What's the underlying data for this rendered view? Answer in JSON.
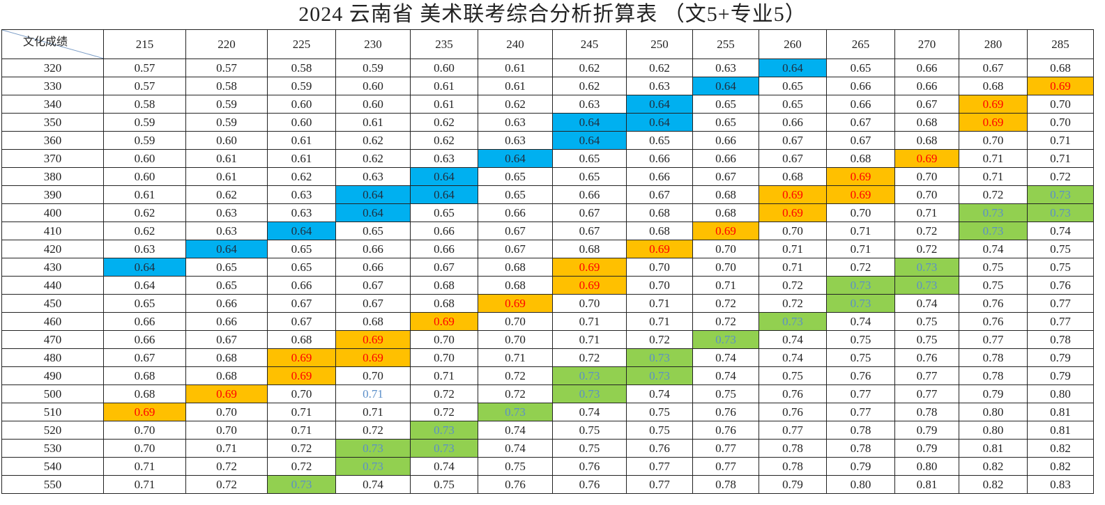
{
  "header": {
    "title": "2024 云南省 美术联考综合分析折算表 （文5+专业5）"
  },
  "table": {
    "corner": "文化成绩",
    "columns": [
      "215",
      "220",
      "225",
      "230",
      "235",
      "240",
      "245",
      "250",
      "255",
      "260",
      "265",
      "270",
      "280",
      "285"
    ],
    "styles": {
      "blue": {
        "bg": "#00b0f0",
        "fg": "#1f2d3d"
      },
      "orange": {
        "bg": "#ffc000",
        "fg": "#ff0000"
      },
      "green": {
        "bg": "#92d050",
        "fg": "#5b8fc9"
      },
      "bluetext": {
        "bg": "#ffffff",
        "fg": "#5b8fc9"
      }
    },
    "rows": [
      {
        "label": "320",
        "cells": [
          "0.57",
          "0.57",
          "0.58",
          "0.59",
          "0.60",
          "0.61",
          "0.62",
          "0.62",
          "0.63",
          "0.64",
          "0.65",
          "0.66",
          "0.67",
          "0.68"
        ],
        "fill": {
          "9": "blue"
        }
      },
      {
        "label": "330",
        "cells": [
          "0.57",
          "0.58",
          "0.59",
          "0.60",
          "0.61",
          "0.61",
          "0.62",
          "0.63",
          "0.64",
          "0.65",
          "0.66",
          "0.66",
          "0.68",
          "0.69"
        ],
        "fill": {
          "8": "blue",
          "13": "orange"
        }
      },
      {
        "label": "340",
        "cells": [
          "0.58",
          "0.59",
          "0.60",
          "0.60",
          "0.61",
          "0.62",
          "0.63",
          "0.64",
          "0.65",
          "0.65",
          "0.66",
          "0.67",
          "0.69",
          "0.70"
        ],
        "fill": {
          "7": "blue",
          "12": "orange"
        }
      },
      {
        "label": "350",
        "cells": [
          "0.59",
          "0.59",
          "0.60",
          "0.61",
          "0.62",
          "0.63",
          "0.64",
          "0.64",
          "0.65",
          "0.66",
          "0.67",
          "0.68",
          "0.69",
          "0.70"
        ],
        "fill": {
          "6": "blue",
          "7": "blue",
          "12": "orange"
        }
      },
      {
        "label": "360",
        "cells": [
          "0.59",
          "0.60",
          "0.61",
          "0.62",
          "0.62",
          "0.63",
          "0.64",
          "0.65",
          "0.66",
          "0.67",
          "0.67",
          "0.68",
          "0.70",
          "0.71"
        ],
        "fill": {
          "6": "blue"
        }
      },
      {
        "label": "370",
        "cells": [
          "0.60",
          "0.61",
          "0.61",
          "0.62",
          "0.63",
          "0.64",
          "0.65",
          "0.66",
          "0.66",
          "0.67",
          "0.68",
          "0.69",
          "0.71",
          "0.71"
        ],
        "fill": {
          "5": "blue",
          "11": "orange"
        }
      },
      {
        "label": "380",
        "cells": [
          "0.60",
          "0.61",
          "0.62",
          "0.63",
          "0.64",
          "0.65",
          "0.65",
          "0.66",
          "0.67",
          "0.68",
          "0.69",
          "0.70",
          "0.71",
          "0.72"
        ],
        "fill": {
          "4": "blue",
          "10": "orange"
        }
      },
      {
        "label": "390",
        "cells": [
          "0.61",
          "0.62",
          "0.63",
          "0.64",
          "0.64",
          "0.65",
          "0.66",
          "0.67",
          "0.68",
          "0.69",
          "0.69",
          "0.70",
          "0.72",
          "0.73"
        ],
        "fill": {
          "3": "blue",
          "4": "blue",
          "9": "orange",
          "10": "orange",
          "13": "green"
        }
      },
      {
        "label": "400",
        "cells": [
          "0.62",
          "0.63",
          "0.63",
          "0.64",
          "0.65",
          "0.66",
          "0.67",
          "0.68",
          "0.68",
          "0.69",
          "0.70",
          "0.71",
          "0.73",
          "0.73"
        ],
        "fill": {
          "3": "blue",
          "9": "orange",
          "12": "green",
          "13": "green"
        }
      },
      {
        "label": "410",
        "cells": [
          "0.62",
          "0.63",
          "0.64",
          "0.65",
          "0.66",
          "0.67",
          "0.67",
          "0.68",
          "0.69",
          "0.70",
          "0.71",
          "0.72",
          "0.73",
          "0.74"
        ],
        "fill": {
          "2": "blue",
          "8": "orange",
          "12": "green"
        }
      },
      {
        "label": "420",
        "cells": [
          "0.63",
          "0.64",
          "0.65",
          "0.66",
          "0.66",
          "0.67",
          "0.68",
          "0.69",
          "0.70",
          "0.71",
          "0.71",
          "0.72",
          "0.74",
          "0.75"
        ],
        "fill": {
          "1": "blue",
          "7": "orange"
        }
      },
      {
        "label": "430",
        "cells": [
          "0.64",
          "0.65",
          "0.65",
          "0.66",
          "0.67",
          "0.68",
          "0.69",
          "0.70",
          "0.70",
          "0.71",
          "0.72",
          "0.73",
          "0.75",
          "0.75"
        ],
        "fill": {
          "0": "blue",
          "6": "orange",
          "11": "green"
        }
      },
      {
        "label": "440",
        "cells": [
          "0.64",
          "0.65",
          "0.66",
          "0.67",
          "0.68",
          "0.68",
          "0.69",
          "0.70",
          "0.71",
          "0.72",
          "0.73",
          "0.73",
          "0.75",
          "0.76"
        ],
        "fill": {
          "6": "orange",
          "10": "green",
          "11": "green"
        }
      },
      {
        "label": "450",
        "cells": [
          "0.65",
          "0.66",
          "0.67",
          "0.67",
          "0.68",
          "0.69",
          "0.70",
          "0.71",
          "0.72",
          "0.72",
          "0.73",
          "0.74",
          "0.76",
          "0.77"
        ],
        "fill": {
          "5": "orange",
          "10": "green"
        }
      },
      {
        "label": "460",
        "cells": [
          "0.66",
          "0.66",
          "0.67",
          "0.68",
          "0.69",
          "0.70",
          "0.71",
          "0.71",
          "0.72",
          "0.73",
          "0.74",
          "0.75",
          "0.76",
          "0.77"
        ],
        "fill": {
          "4": "orange",
          "9": "green"
        }
      },
      {
        "label": "470",
        "cells": [
          "0.66",
          "0.67",
          "0.68",
          "0.69",
          "0.70",
          "0.70",
          "0.71",
          "0.72",
          "0.73",
          "0.74",
          "0.75",
          "0.75",
          "0.77",
          "0.78"
        ],
        "fill": {
          "3": "orange",
          "8": "green"
        }
      },
      {
        "label": "480",
        "cells": [
          "0.67",
          "0.68",
          "0.69",
          "0.69",
          "0.70",
          "0.71",
          "0.72",
          "0.73",
          "0.74",
          "0.74",
          "0.75",
          "0.76",
          "0.78",
          "0.79"
        ],
        "fill": {
          "2": "orange",
          "3": "orange",
          "7": "green"
        }
      },
      {
        "label": "490",
        "cells": [
          "0.68",
          "0.68",
          "0.69",
          "0.70",
          "0.71",
          "0.72",
          "0.73",
          "0.73",
          "0.74",
          "0.75",
          "0.76",
          "0.77",
          "0.78",
          "0.79"
        ],
        "fill": {
          "2": "orange",
          "6": "green",
          "7": "green"
        }
      },
      {
        "label": "500",
        "cells": [
          "0.68",
          "0.69",
          "0.70",
          "0.71",
          "0.72",
          "0.72",
          "0.73",
          "0.74",
          "0.75",
          "0.76",
          "0.77",
          "0.77",
          "0.79",
          "0.80"
        ],
        "fill": {
          "1": "orange",
          "3": "bluetext",
          "6": "green"
        }
      },
      {
        "label": "510",
        "cells": [
          "0.69",
          "0.70",
          "0.71",
          "0.71",
          "0.72",
          "0.73",
          "0.74",
          "0.75",
          "0.76",
          "0.76",
          "0.77",
          "0.78",
          "0.80",
          "0.81"
        ],
        "fill": {
          "0": "orange",
          "5": "green"
        }
      },
      {
        "label": "520",
        "cells": [
          "0.70",
          "0.70",
          "0.71",
          "0.72",
          "0.73",
          "0.74",
          "0.75",
          "0.75",
          "0.76",
          "0.77",
          "0.78",
          "0.79",
          "0.80",
          "0.81"
        ],
        "fill": {
          "4": "green"
        }
      },
      {
        "label": "530",
        "cells": [
          "0.70",
          "0.71",
          "0.72",
          "0.73",
          "0.73",
          "0.74",
          "0.75",
          "0.76",
          "0.77",
          "0.78",
          "0.78",
          "0.79",
          "0.81",
          "0.82"
        ],
        "fill": {
          "3": "green",
          "4": "green"
        }
      },
      {
        "label": "540",
        "cells": [
          "0.71",
          "0.72",
          "0.72",
          "0.73",
          "0.74",
          "0.75",
          "0.76",
          "0.77",
          "0.77",
          "0.78",
          "0.79",
          "0.80",
          "0.82",
          "0.82"
        ],
        "fill": {
          "3": "green"
        }
      },
      {
        "label": "550",
        "cells": [
          "0.71",
          "0.72",
          "0.73",
          "0.74",
          "0.75",
          "0.76",
          "0.76",
          "0.77",
          "0.78",
          "0.79",
          "0.80",
          "0.81",
          "0.82",
          "0.83"
        ],
        "fill": {
          "2": "green"
        }
      }
    ]
  }
}
